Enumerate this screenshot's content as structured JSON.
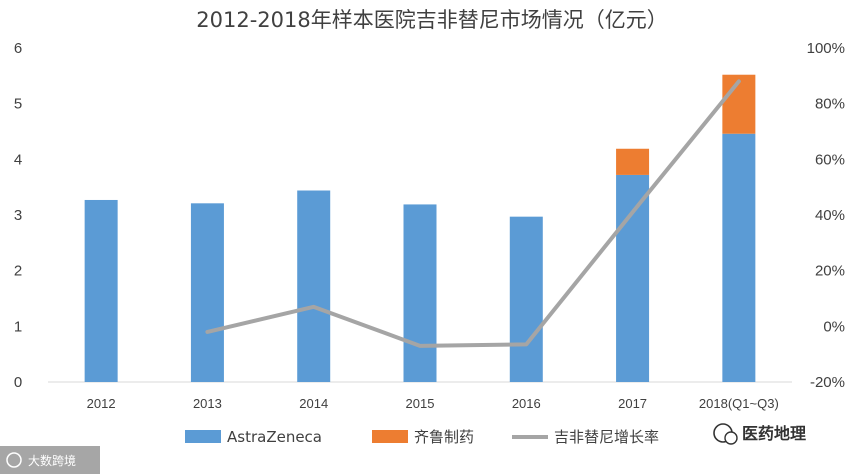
{
  "chart_data": {
    "type": "bar",
    "title": "2012-2018年样本医院吉非替尼市场情况（亿元）",
    "categories": [
      "2012",
      "2013",
      "2014",
      "2015",
      "2016",
      "2017",
      "2018(Q1~Q3)"
    ],
    "series": [
      {
        "name": "AstraZeneca",
        "type": "stacked-bar",
        "axis": "left",
        "color": "#5b9bd5",
        "values": [
          3.27,
          3.21,
          3.44,
          3.19,
          2.97,
          3.72,
          4.46
        ]
      },
      {
        "name": "齐鲁制药",
        "type": "stacked-bar",
        "axis": "left",
        "color": "#ed7d31",
        "values": [
          0,
          0,
          0,
          0,
          0,
          0.47,
          1.06
        ]
      },
      {
        "name": "吉非替尼增长率",
        "type": "line",
        "axis": "right",
        "color": "#a5a5a5",
        "values": [
          null,
          -0.02,
          0.07,
          -0.07,
          -0.065,
          0.41,
          0.88
        ]
      }
    ],
    "y_left": {
      "min": 0,
      "max": 6,
      "ticks": [
        "0",
        "1",
        "2",
        "3",
        "4",
        "5",
        "6"
      ]
    },
    "y_right": {
      "min": -0.2,
      "max": 1.0,
      "ticks": [
        "-20%",
        "0%",
        "20%",
        "40%",
        "60%",
        "80%",
        "100%"
      ]
    },
    "grid": false,
    "legend_position": "bottom"
  },
  "watermarks": {
    "left": "大数跨境",
    "right": "医药地理"
  }
}
